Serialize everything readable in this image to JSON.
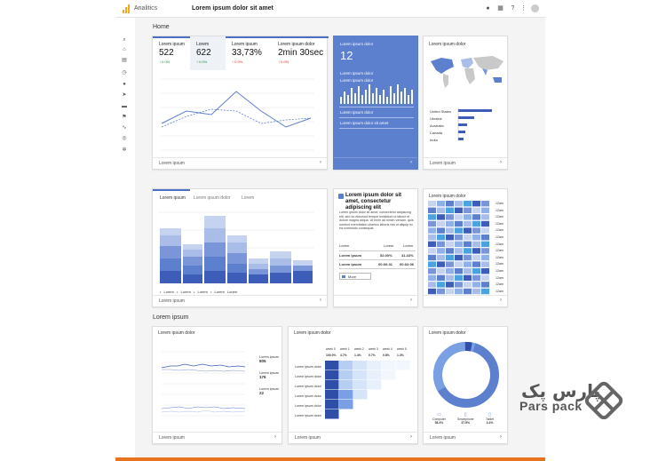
{
  "app": {
    "name": "Analitics",
    "page_title": "Lorem ipsum dolor sit amet"
  },
  "sections": {
    "home": "Home",
    "second": "Lorem ipsum"
  },
  "metrics": [
    {
      "label": "Lorem ipsum",
      "value": "522",
      "change": "↑ 0.0%",
      "trend": "up"
    },
    {
      "label": "Lorem",
      "value": "622",
      "change": "↑ 0.0%",
      "trend": "up"
    },
    {
      "label": "Lorem ipsum",
      "value": "33,73%",
      "change": "↑ 0.0%",
      "trend": "down"
    },
    {
      "label": "Lorem ipsum dolor",
      "value": "2min 30sec",
      "change": "↑ 0.0%",
      "trend": "down"
    }
  ],
  "footer_label": "Lorem ipsum",
  "realtime": {
    "title": "Lorem ipsum dolor",
    "big_value": "12",
    "sub1": "Lorem ipsum dolor",
    "sub2": "Lorem ipsum dolor",
    "row1": "Lorem ipsum dolor",
    "row2": "Lorem ipsum dolor sit amet"
  },
  "geo": {
    "title": "Lorem ipsum dolor",
    "countries": [
      "United States",
      "Ukraine",
      "Australia",
      "Canada",
      "India"
    ]
  },
  "tabs2": [
    "Lorem ipsum",
    "Lorem ipsum dolor",
    "Lorem"
  ],
  "legend2": [
    "• Lorem",
    "• Lorem",
    "• Lorem",
    "• Lorem",
    "Lorem"
  ],
  "insight": {
    "title": "Lorem ipsum dolor sit amet, consectetur adipiscing elit",
    "body": "Lorem ipsum dolor sit amet, consectetur adipiscing elit, sed do eiusmod tempor incididunt ut labore et dolore magna aliqua. Ut enim ad minim veniam, quis nostrud exercitation ullamco laboris nisi ut aliquip ex ea commodo consequat.",
    "table_head": [
      "Lorem",
      "Lorem",
      "Lorem"
    ],
    "rows": [
      {
        "label": "Lorem ipsum",
        "a": "52.00%",
        "b": "41.43%"
      },
      {
        "label": "Lorem ipsum",
        "a": "00:00:31",
        "b": "00:02:06"
      }
    ],
    "button": "More"
  },
  "heatmap": {
    "title": "Lorem ipsum dolor",
    "hours": [
      "12am",
      "12am",
      "12am",
      "12am",
      "12am",
      "12am",
      "12am",
      "12am",
      "12am",
      "12am",
      "12am",
      "12am",
      "12am",
      "12am"
    ]
  },
  "bottom": {
    "line_title": "Lorem ipsum dolor",
    "line_legend": [
      {
        "label": "Lorem ipsum",
        "value": "805"
      },
      {
        "label": "Lorem ipsum",
        "value": "176"
      },
      {
        "label": "Lorem ipsum",
        "value": "22"
      }
    ],
    "cohort_title": "Lorem ipsum dolor",
    "cohort_cols": [
      "week 0",
      "week 1",
      "week 2",
      "week 3",
      "week 4",
      "week 5"
    ],
    "cohort_vals": [
      "100.0%",
      "4.7%",
      "1.4%",
      "0.7%",
      "0.8%",
      "1.3%"
    ],
    "cohort_rows": [
      "Lorem ipsum dolor",
      "Lorem ipsum dolor",
      "Lorem ipsum dolor",
      "Lorem ipsum dolor",
      "Lorem ipsum dolor",
      "Lorem ipsum dolor"
    ],
    "donut_title": "Lorem ipsum dolor",
    "devices": [
      {
        "label": "Computer",
        "value": "58.4%"
      },
      {
        "label": "Smartphone",
        "value": "37.8%"
      },
      {
        "label": "Tablet",
        "value": "3.4%"
      }
    ]
  },
  "brand": {
    "fa": "پارس پک",
    "en": "Pars pack"
  },
  "colors": {
    "primary": "#5c7fce",
    "light": "#a9bde8",
    "accent": "#e8731c"
  }
}
